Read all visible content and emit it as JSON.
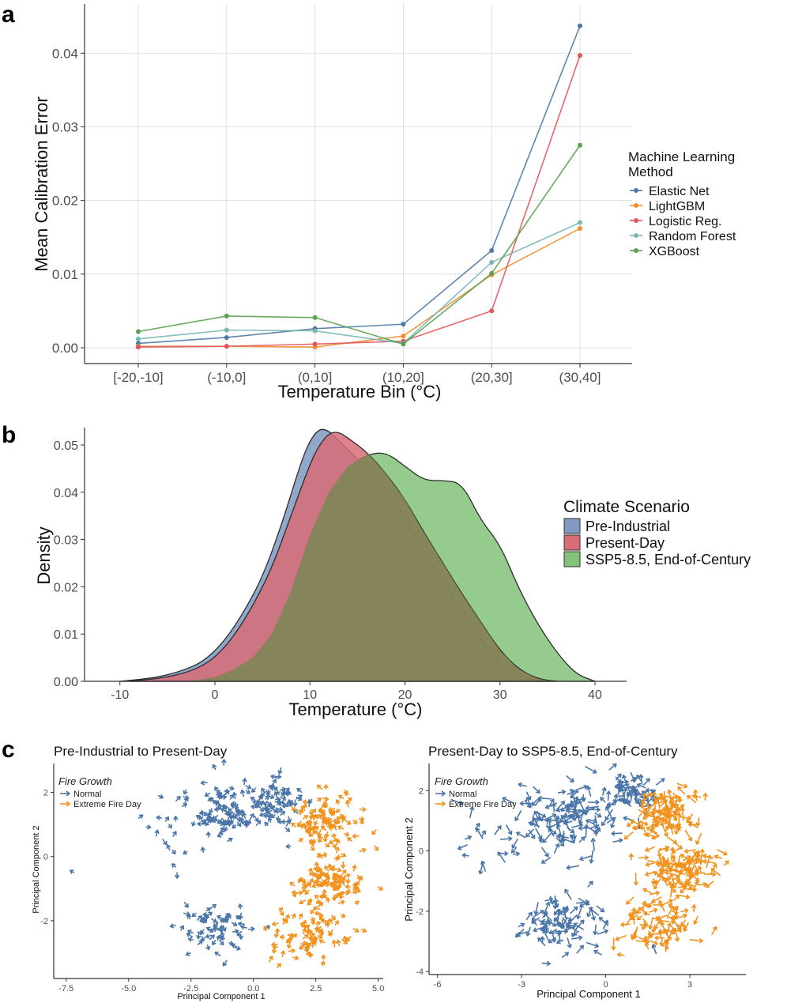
{
  "panel_labels": [
    "a",
    "b",
    "c"
  ],
  "chart_data": [
    {
      "type": "line",
      "id": "a",
      "title": "",
      "xlabel": "Temperature Bin (°C)",
      "ylabel": "Mean Calibration Error",
      "categories": [
        "[-20,-10]",
        "(-10,0]",
        "(0,10]",
        "(10,20]",
        "(20,30]",
        "(30,40]"
      ],
      "ylim": [
        0,
        0.044
      ],
      "yticks": [
        0.0,
        0.01,
        0.02,
        0.03,
        0.04
      ],
      "ytick_labels": [
        "0.00",
        "0.01",
        "0.02",
        "0.03",
        "0.04"
      ],
      "legend_title": "Machine Learning Method",
      "legend_title_lines": [
        "Machine Learning",
        "Method"
      ],
      "legend_position": "right",
      "series": [
        {
          "name": "Elastic Net",
          "color": "#4e79a7",
          "values": [
            0.0006,
            0.0014,
            0.0026,
            0.0032,
            0.0132,
            0.0437
          ]
        },
        {
          "name": "LightGBM",
          "color": "#f28e2b",
          "values": [
            0.0002,
            0.0002,
            0.0001,
            0.0016,
            0.0099,
            0.0162
          ]
        },
        {
          "name": "Logistic Reg.",
          "color": "#e15759",
          "values": [
            0.0001,
            0.0002,
            0.0005,
            0.0009,
            0.005,
            0.0397
          ]
        },
        {
          "name": "Random Forest",
          "color": "#76b7b2",
          "values": [
            0.0012,
            0.0024,
            0.0023,
            0.0006,
            0.0116,
            0.017
          ]
        },
        {
          "name": "XGBoost",
          "color": "#59a14f",
          "values": [
            0.0022,
            0.0043,
            0.0041,
            0.0005,
            0.0101,
            0.0275
          ]
        }
      ]
    },
    {
      "type": "area",
      "id": "b",
      "title": "",
      "xlabel": "Temperature (°C)",
      "ylabel": "Density",
      "xlim": [
        -13,
        43
      ],
      "xticks": [
        -10,
        0,
        10,
        20,
        30,
        40
      ],
      "ylim": [
        0,
        0.054
      ],
      "yticks": [
        0.0,
        0.01,
        0.02,
        0.03,
        0.04,
        0.05
      ],
      "ytick_labels": [
        "0.00",
        "0.01",
        "0.02",
        "0.03",
        "0.04",
        "0.05"
      ],
      "legend_title": "Climate Scenario",
      "legend_position": "right",
      "series": [
        {
          "name": "Pre-Industrial",
          "color": "#7f99c2",
          "x": [
            -10,
            -6,
            -3,
            -1,
            1,
            3,
            5,
            7,
            9,
            10,
            11,
            12,
            13,
            15,
            17,
            19,
            21,
            23,
            25,
            27,
            29,
            31,
            33,
            35
          ],
          "values": [
            0,
            0.0008,
            0.0025,
            0.0045,
            0.0085,
            0.0145,
            0.022,
            0.033,
            0.046,
            0.051,
            0.0535,
            0.053,
            0.051,
            0.047,
            0.043,
            0.038,
            0.031,
            0.024,
            0.018,
            0.012,
            0.006,
            0.002,
            0.0005,
            0
          ]
        },
        {
          "name": "Present-Day",
          "color": "#d86c77",
          "x": [
            -9,
            -5,
            -2,
            0,
            2,
            4,
            6,
            8,
            10,
            11,
            12,
            13,
            14,
            16,
            18,
            20,
            22,
            24,
            26,
            28,
            30,
            32,
            34,
            36
          ],
          "values": [
            0,
            0.0008,
            0.0025,
            0.005,
            0.0095,
            0.016,
            0.024,
            0.035,
            0.046,
            0.05,
            0.0525,
            0.0528,
            0.0515,
            0.0485,
            0.044,
            0.0385,
            0.0315,
            0.025,
            0.0185,
            0.0125,
            0.0065,
            0.0025,
            0.0005,
            0
          ]
        },
        {
          "name": "SSP5-8.5, End-of-Century",
          "color": "#83c379",
          "x": [
            -3,
            0,
            2,
            4,
            6,
            8,
            10,
            12,
            14,
            16,
            18,
            20,
            22,
            24,
            26,
            28,
            30,
            32,
            34,
            36,
            38,
            40
          ],
          "values": [
            0,
            0.0008,
            0.0025,
            0.005,
            0.01,
            0.019,
            0.031,
            0.04,
            0.0455,
            0.048,
            0.0485,
            0.0455,
            0.0425,
            0.0425,
            0.042,
            0.034,
            0.029,
            0.0195,
            0.012,
            0.006,
            0.0015,
            0
          ]
        }
      ]
    },
    {
      "type": "scatter",
      "id": "c-left",
      "title": "Pre-Industrial to Present-Day",
      "xlabel": "Principal Component 1",
      "ylabel": "Principal Component 2",
      "xlim": [
        -8,
        5.2
      ],
      "ylim": [
        -3.8,
        2.9
      ],
      "xticks": [
        -7.5,
        -5.0,
        -2.5,
        0.0,
        2.5,
        5.0
      ],
      "xtick_labels": [
        "-7.5",
        "-5.0",
        "-2.5",
        "0.0",
        "2.5",
        "5.0"
      ],
      "yticks": [
        -2,
        0,
        2
      ],
      "ytick_labels": [
        "-2",
        "0",
        "2"
      ],
      "legend_title": "Fire Growth",
      "legend_entries": [
        "Normal",
        "Extreme Fire Day"
      ],
      "colors": {
        "Normal": "#4a75a8",
        "Extreme Fire Day": "#f2921d"
      },
      "marker": "short arrow (chevron)",
      "clusters": [
        {
          "group": "Normal",
          "cx": -1.2,
          "cy": 1.4,
          "sx": 1.2,
          "sy": 0.7,
          "n": 110
        },
        {
          "group": "Normal",
          "cx": 1.0,
          "cy": 1.6,
          "sx": 0.8,
          "sy": 0.6,
          "n": 70
        },
        {
          "group": "Normal",
          "cx": -1.5,
          "cy": -2.2,
          "sx": 1.1,
          "sy": 0.5,
          "n": 70
        },
        {
          "group": "Normal",
          "cx": -3.2,
          "cy": 0.2,
          "sx": 0.8,
          "sy": 0.9,
          "n": 12
        },
        {
          "group": "Extreme Fire Day",
          "cx": 2.8,
          "cy": 1.1,
          "sx": 0.9,
          "sy": 0.7,
          "n": 110
        },
        {
          "group": "Extreme Fire Day",
          "cx": 3.0,
          "cy": -0.8,
          "sx": 0.9,
          "sy": 0.5,
          "n": 110
        },
        {
          "group": "Extreme Fire Day",
          "cx": 2.3,
          "cy": -2.3,
          "sx": 1.1,
          "sy": 0.6,
          "n": 90
        }
      ],
      "outliers": [
        {
          "group": "Normal",
          "x": -7.2,
          "y": -0.5
        },
        {
          "group": "Normal",
          "x": -4.6,
          "y": 1.2
        },
        {
          "group": "Normal",
          "x": -3.8,
          "y": 1.9
        }
      ]
    },
    {
      "type": "scatter",
      "id": "c-right",
      "title": "Present-Day to SSP5-8.5, End-of-Century",
      "xlabel": "Principal Component 1",
      "ylabel": "Principal Component 2",
      "xlim": [
        -6.3,
        5.0
      ],
      "ylim": [
        -4.1,
        2.9
      ],
      "xticks": [
        -6,
        -3,
        0,
        3
      ],
      "xtick_labels": [
        "-6",
        "-3",
        "0",
        "3"
      ],
      "yticks": [
        -4,
        -2,
        0,
        2
      ],
      "ytick_labels": [
        "-4",
        "-2",
        "0",
        "2"
      ],
      "legend_title": "Fire Growth",
      "legend_entries": [
        "Normal",
        "Extreme Fire Day"
      ],
      "colors": {
        "Normal": "#4a75a8",
        "Extreme Fire Day": "#f2921d"
      },
      "marker": "arrow",
      "clusters": [
        {
          "group": "Normal",
          "cx": -1.3,
          "cy": 1.0,
          "sx": 1.2,
          "sy": 0.9,
          "n": 120
        },
        {
          "group": "Normal",
          "cx": 0.9,
          "cy": 1.9,
          "sx": 0.7,
          "sy": 0.5,
          "n": 60
        },
        {
          "group": "Normal",
          "cx": -1.4,
          "cy": -2.4,
          "sx": 1.2,
          "sy": 0.6,
          "n": 80
        },
        {
          "group": "Normal",
          "cx": -4.2,
          "cy": 0.1,
          "sx": 0.9,
          "sy": 1.0,
          "n": 15
        },
        {
          "group": "Extreme Fire Day",
          "cx": 2.1,
          "cy": 1.2,
          "sx": 0.8,
          "sy": 0.6,
          "n": 100
        },
        {
          "group": "Extreme Fire Day",
          "cx": 2.6,
          "cy": -0.6,
          "sx": 0.9,
          "sy": 0.5,
          "n": 100
        },
        {
          "group": "Extreme Fire Day",
          "cx": 2.1,
          "cy": -2.4,
          "sx": 1.0,
          "sy": 0.6,
          "n": 80
        }
      ],
      "outliers": [
        {
          "group": "Normal",
          "x": -5.5,
          "y": 1.7
        },
        {
          "group": "Normal",
          "x": 1.8,
          "y": -3.4
        }
      ]
    }
  ]
}
